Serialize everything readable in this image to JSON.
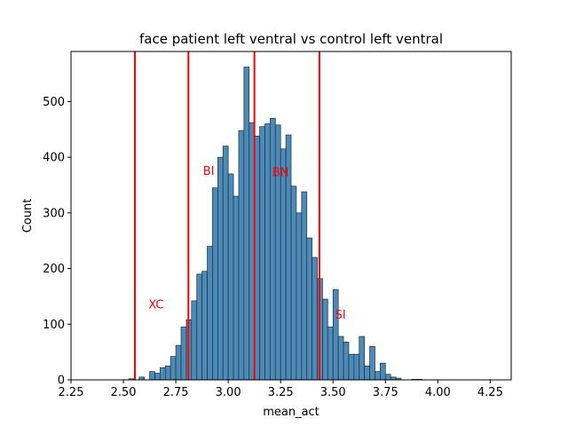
{
  "chart_data": {
    "type": "bar",
    "title": "face patient left ventral vs control left ventral",
    "xlabel": "mean_act",
    "ylabel": "Count",
    "xlim": [
      2.25,
      4.35
    ],
    "ylim": [
      0,
      590
    ],
    "xticks": [
      "2.25",
      "2.50",
      "2.75",
      "3.00",
      "3.25",
      "3.50",
      "3.75",
      "4.00",
      "4.25"
    ],
    "yticks": [
      "0",
      "100",
      "200",
      "300",
      "400",
      "500"
    ],
    "bin_start": 2.525,
    "bin_width": 0.025,
    "counts": [
      2,
      0,
      5,
      0,
      15,
      12,
      22,
      25,
      42,
      62,
      95,
      108,
      142,
      190,
      195,
      240,
      345,
      400,
      420,
      370,
      330,
      448,
      562,
      462,
      438,
      455,
      460,
      470,
      458,
      415,
      440,
      348,
      300,
      338,
      255,
      220,
      182,
      145,
      95,
      162,
      78,
      68,
      46,
      46,
      78,
      25,
      60,
      15,
      30,
      10,
      5,
      3,
      0,
      0,
      1,
      1
    ],
    "bar_color": "#4c8ab8",
    "vlines": [
      {
        "x": 2.555,
        "color": "#ff0000"
      },
      {
        "x": 2.81,
        "color": "#ff0000"
      },
      {
        "x": 3.125,
        "color": "#ff0000"
      },
      {
        "x": 3.435,
        "color": "#ff0000"
      }
    ],
    "annotations": [
      {
        "text": "XC",
        "x": 2.62,
        "y": 128,
        "color": "#ff0000"
      },
      {
        "text": "BI",
        "x": 2.88,
        "y": 368,
        "color": "#ff0000"
      },
      {
        "text": "BN",
        "x": 3.21,
        "y": 366,
        "color": "#ff0000"
      },
      {
        "text": "SI",
        "x": 3.51,
        "y": 110,
        "color": "#ff0000"
      }
    ]
  }
}
